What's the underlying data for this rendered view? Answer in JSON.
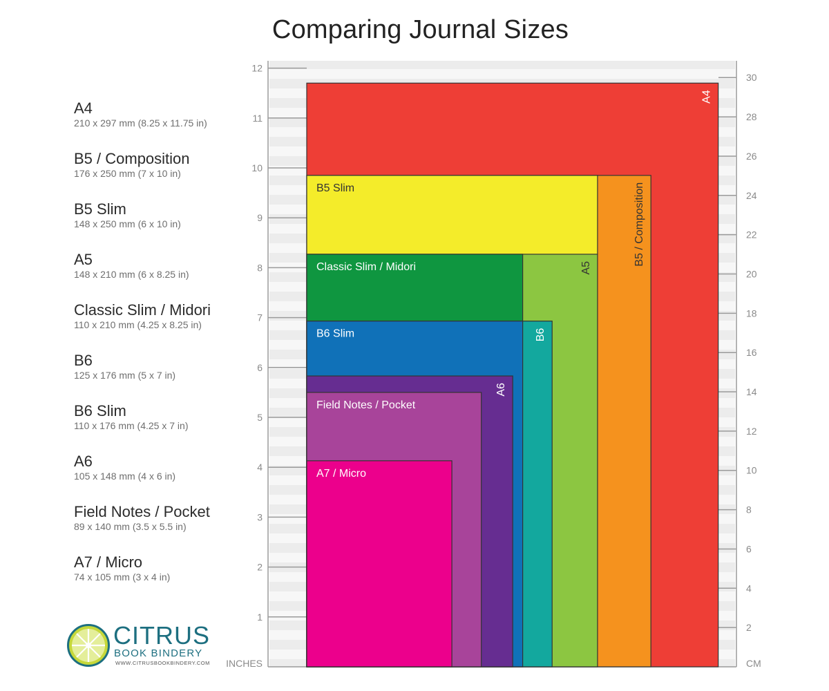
{
  "title": "Comparing Journal Sizes",
  "legend": [
    {
      "name": "A4",
      "dims": "210 x 297 mm (8.25 x 11.75 in)"
    },
    {
      "name": "B5 / Composition",
      "dims": "176 x 250 mm (7 x 10 in)"
    },
    {
      "name": "B5 Slim",
      "dims": "148 x 250 mm (6 x 10 in)"
    },
    {
      "name": "A5",
      "dims": "148 x 210 mm (6 x 8.25 in)"
    },
    {
      "name": "Classic Slim / Midori",
      "dims": "110 x 210 mm (4.25 x 8.25 in)"
    },
    {
      "name": "B6",
      "dims": "125 x 176 mm (5 x 7 in)"
    },
    {
      "name": "B6 Slim",
      "dims": "110 x 176 mm (4.25 x 7 in)"
    },
    {
      "name": "A6",
      "dims": "105 x 148 mm (4 x 6 in)"
    },
    {
      "name": "Field Notes / Pocket",
      "dims": "89 x 140 mm (3.5 x 5.5 in)"
    },
    {
      "name": "A7 / Micro",
      "dims": "74 x 105 mm (3 x 4 in)"
    }
  ],
  "chart_data": {
    "type": "nested-rectangles",
    "left_axis": {
      "label": "INCHES",
      "ticks": [
        1,
        2,
        3,
        4,
        5,
        6,
        7,
        8,
        9,
        10,
        11,
        12
      ]
    },
    "right_axis": {
      "label": "CM",
      "ticks": [
        2,
        4,
        6,
        8,
        10,
        12,
        14,
        16,
        18,
        20,
        22,
        24,
        26,
        28,
        30
      ]
    },
    "rectangles": [
      {
        "name": "A4",
        "label": "A4",
        "width_in": 8.25,
        "height_in": 11.7,
        "color": "#ee3e36",
        "label_style": "vertical",
        "label_color": "#ffffff"
      },
      {
        "name": "B5 / Composition",
        "label": "B5 / Composition",
        "width_in": 6.9,
        "height_in": 9.85,
        "color": "#f5921e",
        "label_style": "vertical",
        "label_color": "#333333"
      },
      {
        "name": "B5 Slim",
        "label": "B5 Slim",
        "width_in": 5.83,
        "height_in": 9.85,
        "color": "#f4ec2a",
        "label_style": "horizontal",
        "label_color": "#333333"
      },
      {
        "name": "A5",
        "label": "A5",
        "width_in": 5.83,
        "height_in": 8.27,
        "color": "#8cc641",
        "label_style": "vertical",
        "label_color": "#333333"
      },
      {
        "name": "Classic Slim / Midori",
        "label": "Classic Slim / Midori",
        "width_in": 4.33,
        "height_in": 8.27,
        "color": "#0f9640",
        "label_style": "horizontal",
        "label_color": "#ffffff"
      },
      {
        "name": "B6",
        "label": "B6",
        "width_in": 4.92,
        "height_in": 6.93,
        "color": "#13a89e",
        "label_style": "vertical",
        "label_color": "#ffffff"
      },
      {
        "name": "B6 Slim",
        "label": "B6 Slim",
        "width_in": 4.33,
        "height_in": 6.93,
        "color": "#1071b8",
        "label_style": "horizontal",
        "label_color": "#ffffff"
      },
      {
        "name": "A6",
        "label": "A6",
        "width_in": 4.13,
        "height_in": 5.83,
        "color": "#662d91",
        "label_style": "vertical",
        "label_color": "#ffffff"
      },
      {
        "name": "Field Notes / Pocket",
        "label": "Field Notes / Pocket",
        "width_in": 3.5,
        "height_in": 5.5,
        "color": "#a8449a",
        "label_style": "horizontal",
        "label_color": "#ffffff"
      },
      {
        "name": "A7 / Micro",
        "label": "A7 / Micro",
        "width_in": 2.91,
        "height_in": 4.13,
        "color": "#ec008c",
        "label_style": "horizontal",
        "label_color": "#ffffff"
      }
    ]
  },
  "logo": {
    "name": "CITRUS",
    "sub": "BOOK BINDERY",
    "url": "WWW.CITRUSBOOKBINDERY.COM"
  }
}
